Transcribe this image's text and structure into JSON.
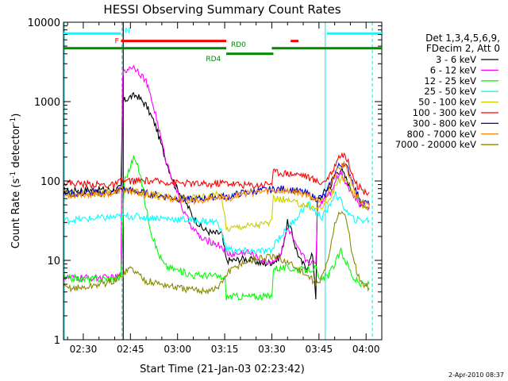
{
  "chart_data": {
    "type": "line",
    "title": "HESSI Observing Summary Count Rates",
    "xlabel": "Start Time (21-Jan-03 02:23:42)",
    "ylabel_main": "Count Rate (s",
    "ylabel_sup": "-1",
    "ylabel_tail": " detector",
    "ylabel_end": ")",
    "y_scale": "log",
    "ylim": [
      1,
      10000
    ],
    "xlim_minutes": [
      23.7,
      125
    ],
    "x_ticks": [
      {
        "m": 30,
        "label": "02:30"
      },
      {
        "m": 45,
        "label": "02:45"
      },
      {
        "m": 60,
        "label": "03:00"
      },
      {
        "m": 75,
        "label": "03:15"
      },
      {
        "m": 90,
        "label": "03:30"
      },
      {
        "m": 105,
        "label": "03:45"
      },
      {
        "m": 120,
        "label": "04:00"
      }
    ],
    "y_ticks": [
      {
        "v": 1,
        "label": "1"
      },
      {
        "v": 10,
        "label": "10"
      },
      {
        "v": 100,
        "label": "100"
      },
      {
        "v": 1000,
        "label": "1000"
      },
      {
        "v": 10000,
        "label": "10000"
      }
    ],
    "legend_header": [
      "Det 1,3,4,5,6,9,",
      "FDecim 2, Att 0"
    ],
    "series": [
      {
        "name": "3 - 6 keV",
        "color": "#000000",
        "points": [
          [
            23.7,
            75
          ],
          [
            30,
            77
          ],
          [
            40,
            78
          ],
          [
            42,
            82
          ],
          [
            42.5,
            1000
          ],
          [
            45,
            1150
          ],
          [
            47,
            1200
          ],
          [
            50,
            900
          ],
          [
            53,
            500
          ],
          [
            56,
            200
          ],
          [
            59,
            90
          ],
          [
            62,
            60
          ],
          [
            65,
            35
          ],
          [
            68,
            25
          ],
          [
            71,
            22
          ],
          [
            74,
            22
          ],
          [
            75.5,
            10
          ],
          [
            78,
            10
          ],
          [
            81,
            10.5
          ],
          [
            84,
            10
          ],
          [
            87,
            9
          ],
          [
            90,
            9.5
          ],
          [
            91.5,
            10
          ],
          [
            93,
            12
          ],
          [
            95,
            30
          ],
          [
            96,
            25
          ],
          [
            97.5,
            15
          ],
          [
            99,
            10
          ],
          [
            101,
            8
          ],
          [
            103,
            12
          ],
          [
            104,
            3.5
          ],
          [
            104.5,
            55
          ],
          [
            107,
            75
          ],
          [
            109,
            90
          ],
          [
            110,
            120
          ],
          [
            112,
            140
          ],
          [
            114,
            100
          ],
          [
            116,
            70
          ],
          [
            118,
            55
          ],
          [
            121,
            45
          ]
        ]
      },
      {
        "name": "6 - 12 keV",
        "color": "#ff00ff",
        "points": [
          [
            23.7,
            6
          ],
          [
            30,
            6
          ],
          [
            40,
            6
          ],
          [
            42,
            6.5
          ],
          [
            42.5,
            2200
          ],
          [
            45,
            2800
          ],
          [
            47,
            2600
          ],
          [
            50,
            1800
          ],
          [
            53,
            700
          ],
          [
            56,
            200
          ],
          [
            59,
            90
          ],
          [
            62,
            40
          ],
          [
            65,
            25
          ],
          [
            68,
            18
          ],
          [
            71,
            17
          ],
          [
            74,
            15
          ],
          [
            76,
            12
          ],
          [
            79,
            12
          ],
          [
            82,
            13
          ],
          [
            85,
            11
          ],
          [
            88,
            9.5
          ],
          [
            91,
            10
          ],
          [
            93,
            13
          ],
          [
            95,
            25
          ],
          [
            96,
            22
          ],
          [
            98,
            14
          ],
          [
            101,
            10
          ],
          [
            104,
            9
          ],
          [
            104.5,
            45
          ],
          [
            107,
            65
          ],
          [
            109,
            75
          ],
          [
            110,
            100
          ],
          [
            112,
            130
          ],
          [
            114,
            90
          ],
          [
            116,
            65
          ],
          [
            118,
            50
          ],
          [
            121,
            47
          ]
        ]
      },
      {
        "name": "12 - 25 keV",
        "color": "#00ff00",
        "points": [
          [
            23.7,
            6
          ],
          [
            30,
            5.8
          ],
          [
            40,
            5.9
          ],
          [
            42,
            6
          ],
          [
            43,
            100
          ],
          [
            45,
            150
          ],
          [
            46,
            200
          ],
          [
            48,
            130
          ],
          [
            50,
            45
          ],
          [
            52,
            20
          ],
          [
            54,
            12
          ],
          [
            56,
            8.5
          ],
          [
            60,
            7.5
          ],
          [
            65,
            6.5
          ],
          [
            70,
            6.5
          ],
          [
            75,
            6
          ],
          [
            75.5,
            3.5
          ],
          [
            90,
            3.5
          ],
          [
            90.5,
            8
          ],
          [
            95,
            8
          ],
          [
            100,
            7.5
          ],
          [
            104,
            8
          ],
          [
            105,
            5.5
          ],
          [
            108,
            6.5
          ],
          [
            110,
            9
          ],
          [
            112,
            13
          ],
          [
            114,
            9
          ],
          [
            116,
            6
          ],
          [
            118,
            5
          ],
          [
            121,
            5
          ]
        ]
      },
      {
        "name": "25 - 50 keV",
        "color": "#00ffff",
        "points": [
          [
            23.7,
            32
          ],
          [
            30,
            33
          ],
          [
            35,
            34
          ],
          [
            40,
            35
          ],
          [
            45,
            36
          ],
          [
            50,
            35
          ],
          [
            55,
            34
          ],
          [
            60,
            33
          ],
          [
            65,
            32
          ],
          [
            70,
            31
          ],
          [
            73,
            30
          ],
          [
            75.5,
            14
          ],
          [
            80,
            13
          ],
          [
            85,
            13
          ],
          [
            90,
            13
          ],
          [
            91,
            17
          ],
          [
            95,
            25
          ],
          [
            98,
            35
          ],
          [
            100,
            45
          ],
          [
            102,
            50
          ],
          [
            104,
            40
          ],
          [
            106,
            35
          ],
          [
            108,
            45
          ],
          [
            110,
            70
          ],
          [
            112,
            55
          ],
          [
            114,
            40
          ],
          [
            116,
            33
          ],
          [
            118,
            32
          ],
          [
            121,
            32
          ]
        ]
      },
      {
        "name": "50 - 100 keV",
        "color": "#cccc00",
        "points": [
          [
            23.7,
            70
          ],
          [
            30,
            70
          ],
          [
            40,
            72
          ],
          [
            42,
            78
          ],
          [
            45,
            75
          ],
          [
            50,
            70
          ],
          [
            55,
            65
          ],
          [
            60,
            60
          ],
          [
            65,
            62
          ],
          [
            70,
            65
          ],
          [
            74,
            68
          ],
          [
            75.5,
            25
          ],
          [
            80,
            27
          ],
          [
            85,
            28
          ],
          [
            90,
            30
          ],
          [
            90.5,
            60
          ],
          [
            94,
            58
          ],
          [
            98,
            52
          ],
          [
            101,
            50
          ],
          [
            104,
            45
          ],
          [
            107,
            50
          ],
          [
            109,
            65
          ],
          [
            111,
            100
          ],
          [
            113,
            110
          ],
          [
            115,
            80
          ],
          [
            117,
            60
          ],
          [
            119,
            50
          ],
          [
            121,
            47
          ]
        ]
      },
      {
        "name": "100 - 300 keV",
        "color": "#ff0000",
        "points": [
          [
            23.7,
            95
          ],
          [
            30,
            92
          ],
          [
            40,
            88
          ],
          [
            42,
            100
          ],
          [
            50,
            100
          ],
          [
            60,
            95
          ],
          [
            70,
            90
          ],
          [
            74,
            95
          ],
          [
            75.5,
            95
          ],
          [
            80,
            90
          ],
          [
            85,
            88
          ],
          [
            90,
            95
          ],
          [
            90.5,
            130
          ],
          [
            95,
            125
          ],
          [
            100,
            120
          ],
          [
            104,
            100
          ],
          [
            106,
            95
          ],
          [
            109,
            120
          ],
          [
            111,
            200
          ],
          [
            113,
            220
          ],
          [
            115,
            150
          ],
          [
            117,
            90
          ],
          [
            119,
            75
          ],
          [
            121,
            72
          ]
        ]
      },
      {
        "name": "300 - 800 keV",
        "color": "#0000cc",
        "points": [
          [
            23.7,
            68
          ],
          [
            30,
            70
          ],
          [
            40,
            72
          ],
          [
            42,
            80
          ],
          [
            45,
            76
          ],
          [
            50,
            70
          ],
          [
            55,
            65
          ],
          [
            60,
            60
          ],
          [
            65,
            58
          ],
          [
            70,
            62
          ],
          [
            74,
            65
          ],
          [
            75.5,
            62
          ],
          [
            80,
            70
          ],
          [
            85,
            75
          ],
          [
            90,
            78
          ],
          [
            94,
            80
          ],
          [
            98,
            75
          ],
          [
            101,
            70
          ],
          [
            104,
            60
          ],
          [
            107,
            65
          ],
          [
            109,
            100
          ],
          [
            111,
            150
          ],
          [
            113,
            170
          ],
          [
            115,
            120
          ],
          [
            117,
            70
          ],
          [
            119,
            55
          ],
          [
            121,
            50
          ]
        ]
      },
      {
        "name": "800 - 7000 keV",
        "color": "#ff8800",
        "points": [
          [
            23.7,
            65
          ],
          [
            30,
            68
          ],
          [
            40,
            70
          ],
          [
            42,
            78
          ],
          [
            45,
            74
          ],
          [
            50,
            68
          ],
          [
            55,
            63
          ],
          [
            60,
            58
          ],
          [
            65,
            56
          ],
          [
            70,
            60
          ],
          [
            74,
            63
          ],
          [
            75.5,
            60
          ],
          [
            80,
            68
          ],
          [
            85,
            72
          ],
          [
            90,
            75
          ],
          [
            94,
            75
          ],
          [
            98,
            72
          ],
          [
            101,
            68
          ],
          [
            104,
            58
          ],
          [
            107,
            62
          ],
          [
            109,
            95
          ],
          [
            111,
            140
          ],
          [
            113,
            160
          ],
          [
            115,
            110
          ],
          [
            117,
            65
          ],
          [
            119,
            52
          ],
          [
            121,
            48
          ]
        ]
      },
      {
        "name": "7000 - 20000 keV",
        "color": "#888800",
        "points": [
          [
            23.7,
            4.5
          ],
          [
            30,
            4.5
          ],
          [
            35,
            5
          ],
          [
            40,
            5.5
          ],
          [
            43,
            7
          ],
          [
            45,
            8
          ],
          [
            47,
            7
          ],
          [
            50,
            5.5
          ],
          [
            55,
            5
          ],
          [
            60,
            4.5
          ],
          [
            65,
            4.2
          ],
          [
            70,
            4.2
          ],
          [
            73,
            4.5
          ],
          [
            76,
            7
          ],
          [
            80,
            9
          ],
          [
            85,
            10.5
          ],
          [
            90,
            11
          ],
          [
            94,
            10
          ],
          [
            98,
            8
          ],
          [
            102,
            6
          ],
          [
            105,
            5
          ],
          [
            108,
            10
          ],
          [
            110,
            30
          ],
          [
            112,
            42
          ],
          [
            114,
            30
          ],
          [
            116,
            10
          ],
          [
            118,
            5.5
          ],
          [
            121,
            4.5
          ]
        ]
      }
    ],
    "status_bars": [
      {
        "label": "N",
        "color": "#00ffff",
        "y": 7200,
        "segments": [
          [
            23.7,
            42
          ],
          [
            107.5,
            125
          ]
        ]
      },
      {
        "label": "F",
        "color": "#ff0000",
        "y": 5800,
        "segments": [
          [
            42,
            75.5
          ],
          [
            96,
            98.5
          ]
        ]
      },
      {
        "label": "RD0",
        "color": "#008800",
        "y": 4700,
        "segments": [
          [
            23.7,
            75.5
          ],
          [
            90,
            125
          ]
        ]
      },
      {
        "label": "RD4",
        "color": "#008800",
        "y": 4000,
        "segments": [
          [
            75.5,
            90.5
          ]
        ]
      }
    ],
    "vlines": [
      {
        "m": 24,
        "color": "#00ffff",
        "style": "solid"
      },
      {
        "m": 42.3,
        "color": "#00ffff",
        "style": "dashed"
      },
      {
        "m": 42.7,
        "color": "#000000",
        "style": "solid"
      },
      {
        "m": 107,
        "color": "#00ffff",
        "style": "solid"
      },
      {
        "m": 122,
        "color": "#00ffff",
        "style": "dashed"
      }
    ]
  },
  "footer_date": "2-Apr-2010 08:37"
}
